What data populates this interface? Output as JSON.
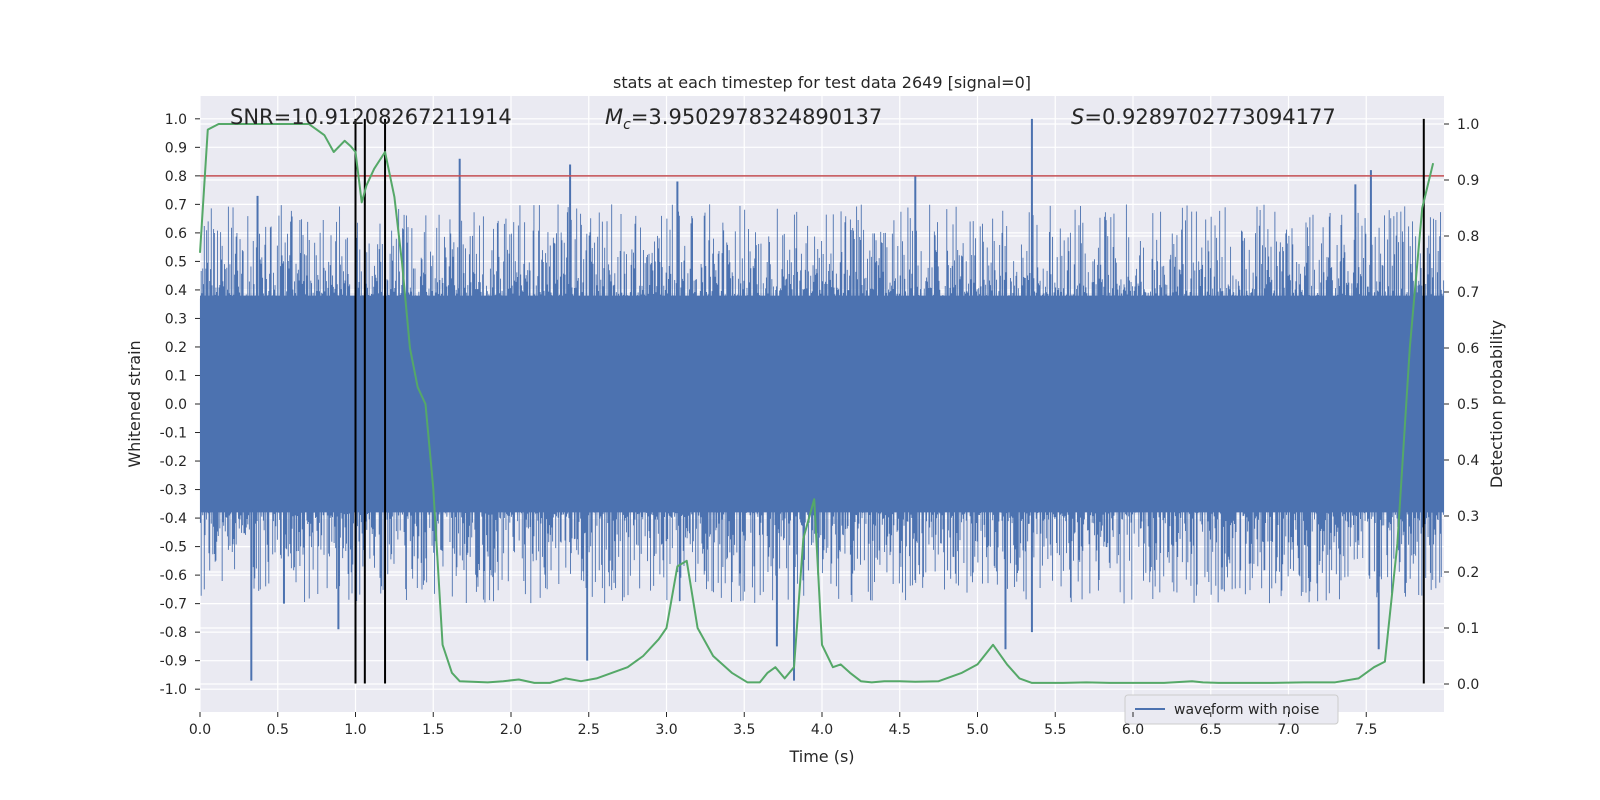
{
  "chart_data": {
    "type": "line",
    "title": "stats at each timestep for test data 2649 [signal=0]",
    "xlabel": "Time (s)",
    "ylabel_left": "Whitened strain",
    "ylabel_right": "Detection probability",
    "xlim": [
      0.0,
      8.0
    ],
    "ylim_left": [
      -1.08,
      1.08
    ],
    "ylim_right": [
      -0.05,
      1.05
    ],
    "x_ticks": [
      "0.0",
      "0.5",
      "1.0",
      "1.5",
      "2.0",
      "2.5",
      "3.0",
      "3.5",
      "4.0",
      "4.5",
      "5.0",
      "5.5",
      "6.0",
      "6.5",
      "7.0",
      "7.5"
    ],
    "y_left_ticks": [
      "1.0",
      "0.9",
      "0.8",
      "0.7",
      "0.6",
      "0.5",
      "0.4",
      "0.3",
      "0.2",
      "0.1",
      "0.0",
      "-0.1",
      "-0.2",
      "-0.3",
      "-0.4",
      "-0.5",
      "-0.6",
      "-0.7",
      "-0.8",
      "-0.9",
      "-1.0"
    ],
    "y_right_ticks": [
      "1.0",
      "0.9",
      "0.8",
      "0.7",
      "0.6",
      "0.5",
      "0.4",
      "0.3",
      "0.2",
      "0.1",
      "0.0"
    ],
    "annotations": {
      "snr": "SNR=10.91208267211914",
      "mc_symbol": "M",
      "mc_sub": "c",
      "mc_value": "=3.9502978324890137",
      "s_symbol": "S",
      "s_value": "=0.9289702773094177"
    },
    "threshold": {
      "value": 0.8,
      "color": "#c44e52"
    },
    "vertical_lines_x": [
      1.0,
      1.06,
      1.19,
      7.87
    ],
    "legend": {
      "label": "waveform with noise",
      "position": "lower right"
    },
    "waveform_color": "#4c72b0",
    "probability_color": "#55a868",
    "waveform_spikes": [
      {
        "x": 0.33,
        "y": -0.97
      },
      {
        "x": 0.37,
        "y": 0.73
      },
      {
        "x": 0.54,
        "y": -0.7
      },
      {
        "x": 0.89,
        "y": -0.79
      },
      {
        "x": 1.67,
        "y": 0.86
      },
      {
        "x": 2.38,
        "y": 0.84
      },
      {
        "x": 2.49,
        "y": -0.9
      },
      {
        "x": 3.82,
        "y": -0.97
      },
      {
        "x": 3.71,
        "y": -0.85
      },
      {
        "x": 4.6,
        "y": 0.8
      },
      {
        "x": 5.18,
        "y": -0.86
      },
      {
        "x": 5.35,
        "y": 1.0
      },
      {
        "x": 5.35,
        "y": -0.8
      },
      {
        "x": 7.53,
        "y": 0.82
      },
      {
        "x": 7.58,
        "y": -0.86
      },
      {
        "x": 7.43,
        "y": 0.77
      },
      {
        "x": 3.07,
        "y": 0.78
      }
    ],
    "probability": {
      "x": [
        0.0,
        0.05,
        0.12,
        0.2,
        0.3,
        0.4,
        0.5,
        0.6,
        0.7,
        0.75,
        0.8,
        0.86,
        0.93,
        0.97,
        1.0,
        1.04,
        1.07,
        1.12,
        1.19,
        1.25,
        1.3,
        1.35,
        1.4,
        1.45,
        1.5,
        1.56,
        1.62,
        1.67,
        1.75,
        1.85,
        1.95,
        2.05,
        2.15,
        2.25,
        2.35,
        2.45,
        2.55,
        2.65,
        2.75,
        2.85,
        2.95,
        3.0,
        3.07,
        3.13,
        3.2,
        3.3,
        3.42,
        3.52,
        3.6,
        3.65,
        3.7,
        3.76,
        3.82,
        3.88,
        3.95,
        4.0,
        4.07,
        4.12,
        4.18,
        4.25,
        4.32,
        4.4,
        4.5,
        4.6,
        4.75,
        4.9,
        5.0,
        5.1,
        5.19,
        5.27,
        5.35,
        5.42,
        5.55,
        5.7,
        5.85,
        6.0,
        6.2,
        6.38,
        6.45,
        6.55,
        6.7,
        6.9,
        7.1,
        7.3,
        7.45,
        7.55,
        7.62,
        7.7,
        7.78,
        7.86,
        7.93
      ],
      "y": [
        0.77,
        0.99,
        1.0,
        1.0,
        1.0,
        1.0,
        1.0,
        1.0,
        1.0,
        0.99,
        0.98,
        0.95,
        0.97,
        0.96,
        0.95,
        0.86,
        0.89,
        0.92,
        0.95,
        0.87,
        0.75,
        0.6,
        0.53,
        0.5,
        0.35,
        0.07,
        0.02,
        0.005,
        0.004,
        0.003,
        0.005,
        0.008,
        0.002,
        0.002,
        0.01,
        0.005,
        0.01,
        0.02,
        0.03,
        0.05,
        0.08,
        0.1,
        0.21,
        0.22,
        0.1,
        0.05,
        0.02,
        0.003,
        0.003,
        0.02,
        0.03,
        0.01,
        0.03,
        0.26,
        0.33,
        0.07,
        0.03,
        0.035,
        0.02,
        0.005,
        0.003,
        0.005,
        0.005,
        0.004,
        0.005,
        0.02,
        0.035,
        0.07,
        0.035,
        0.01,
        0.002,
        0.002,
        0.002,
        0.003,
        0.002,
        0.002,
        0.002,
        0.005,
        0.003,
        0.002,
        0.002,
        0.002,
        0.003,
        0.003,
        0.01,
        0.03,
        0.04,
        0.25,
        0.6,
        0.85,
        0.93
      ]
    }
  }
}
